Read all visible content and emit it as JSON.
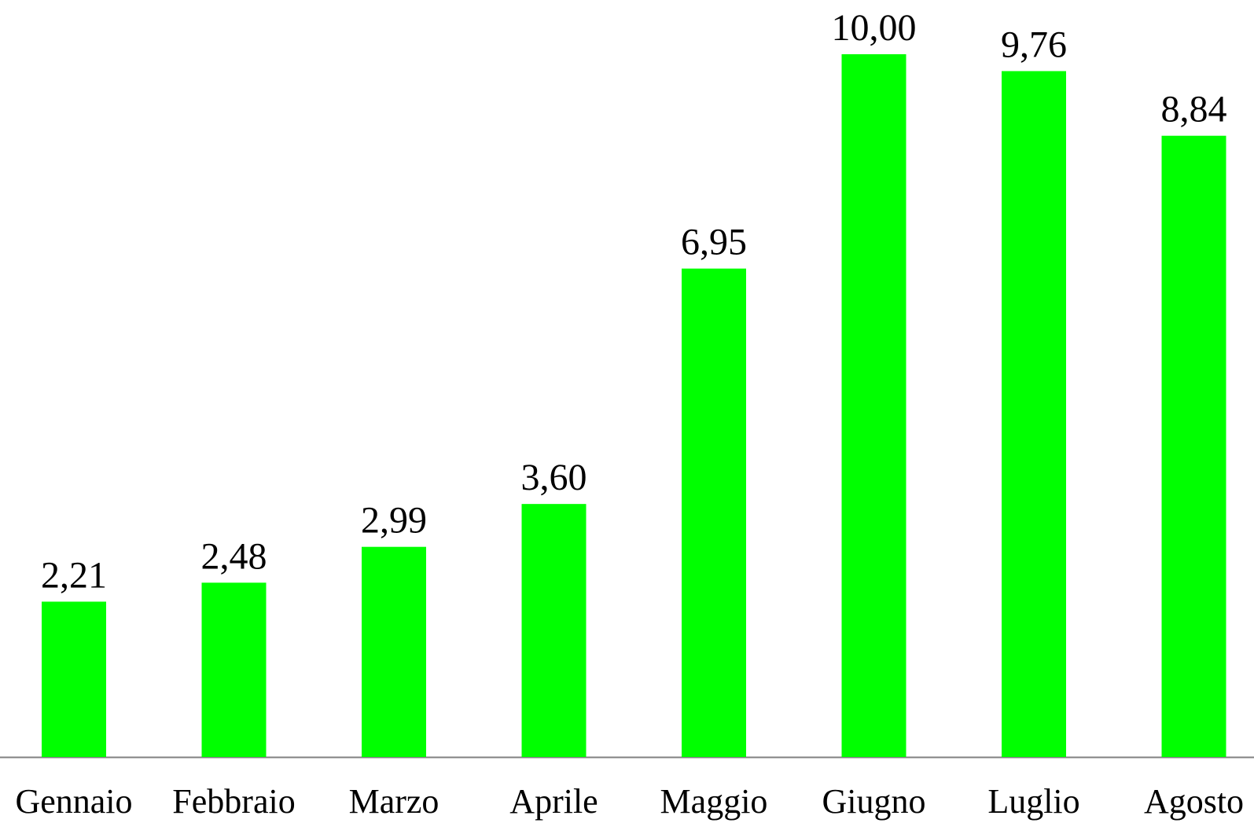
{
  "chart_data": {
    "type": "bar",
    "categories": [
      "Gennaio",
      "Febbraio",
      "Marzo",
      "Aprile",
      "Maggio",
      "Giugno",
      "Luglio",
      "Agosto"
    ],
    "values": [
      2.21,
      2.48,
      2.99,
      3.6,
      6.95,
      10.0,
      9.76,
      8.84
    ],
    "value_labels": [
      "2,21",
      "2,48",
      "2,99",
      "3,60",
      "6,95",
      "10,00",
      "9,76",
      "8,84"
    ],
    "title": "",
    "xlabel": "",
    "ylabel": "",
    "ylim": [
      0,
      10
    ],
    "grid": false,
    "legend": "none",
    "bar_color": "#00ff00",
    "axis_color": "#808080"
  }
}
